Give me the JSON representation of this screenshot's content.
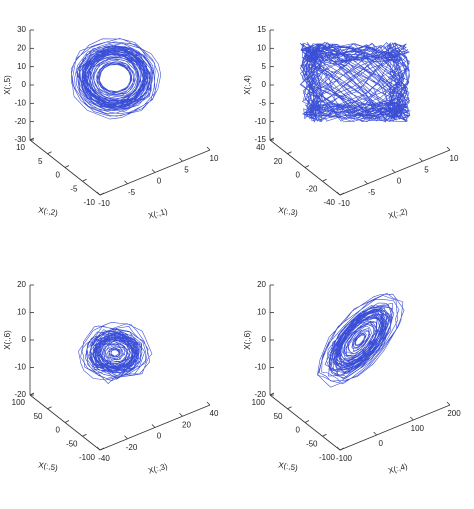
{
  "chart_data": [
    {
      "type": "line3d",
      "color": "#3b4fd6",
      "zlabel": "X(:,5)",
      "ylabel": "X(:,2)",
      "xlabel": "X(:,1)",
      "zlim": [
        -30,
        30
      ],
      "zticks": [
        -30,
        -20,
        -10,
        0,
        10,
        20,
        30
      ],
      "ylim": [
        10,
        -10
      ],
      "yticks": [
        10,
        5,
        0,
        -5,
        -10
      ],
      "xlim": [
        -10,
        10
      ],
      "xticks": [
        -10,
        -5,
        0,
        5,
        10
      ]
    },
    {
      "type": "line3d",
      "color": "#3b4fd6",
      "zlabel": "X(:,4)",
      "ylabel": "X(:,3)",
      "xlabel": "X(:,2)",
      "zlim": [
        -15,
        15
      ],
      "zticks": [
        -15,
        -10,
        -5,
        0,
        5,
        10,
        15
      ],
      "ylim": [
        40,
        -40
      ],
      "yticks": [
        40,
        20,
        0,
        -20,
        -40
      ],
      "xlim": [
        -10,
        10
      ],
      "xticks": [
        -10,
        -5,
        0,
        5,
        10
      ]
    },
    {
      "type": "line3d",
      "color": "#3b4fd6",
      "zlabel": "X(:,6)",
      "ylabel": "X(:,5)",
      "xlabel": "X(:,3)",
      "zlim": [
        -20,
        20
      ],
      "zticks": [
        -20,
        -10,
        0,
        10,
        20
      ],
      "ylim": [
        100,
        -100
      ],
      "yticks": [
        100,
        50,
        0,
        -50,
        -100
      ],
      "xlim": [
        -40,
        40
      ],
      "xticks": [
        -40,
        -20,
        0,
        20,
        40
      ]
    },
    {
      "type": "line3d",
      "color": "#3b4fd6",
      "zlabel": "X(:,6)",
      "ylabel": "X(:,5)",
      "xlabel": "X(:,4)",
      "zlim": [
        -20,
        20
      ],
      "zticks": [
        -20,
        -10,
        0,
        10,
        20
      ],
      "ylim": [
        100,
        -100
      ],
      "yticks": [
        100,
        50,
        0,
        -50,
        -100
      ],
      "xlim": [
        -100,
        200
      ],
      "xticks": [
        -100,
        0,
        100,
        200
      ]
    }
  ]
}
